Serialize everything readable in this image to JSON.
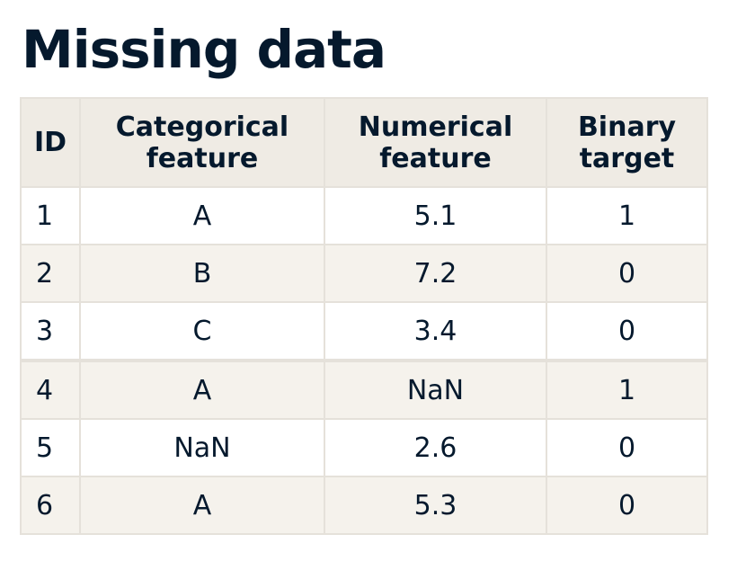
{
  "title": "Missing data",
  "table": {
    "headers": [
      {
        "lines": [
          "ID"
        ]
      },
      {
        "lines": [
          "Categorical",
          "feature"
        ]
      },
      {
        "lines": [
          "Numerical",
          "feature"
        ]
      },
      {
        "lines": [
          "Binary",
          "target"
        ]
      }
    ],
    "rows": [
      [
        "1",
        "A",
        "5.1",
        "1"
      ],
      [
        "2",
        "B",
        "7.2",
        "0"
      ],
      [
        "3",
        "C",
        "3.4",
        "0"
      ],
      [
        "4",
        "A",
        "NaN",
        "1"
      ],
      [
        "5",
        "NaN",
        "2.6",
        "0"
      ],
      [
        "6",
        "A",
        "5.3",
        "0"
      ]
    ]
  },
  "colors": {
    "text": "#05192d",
    "header_bg": "#efebe4",
    "alt_row_bg": "#f5f2ec",
    "border": "#e5e1da"
  }
}
